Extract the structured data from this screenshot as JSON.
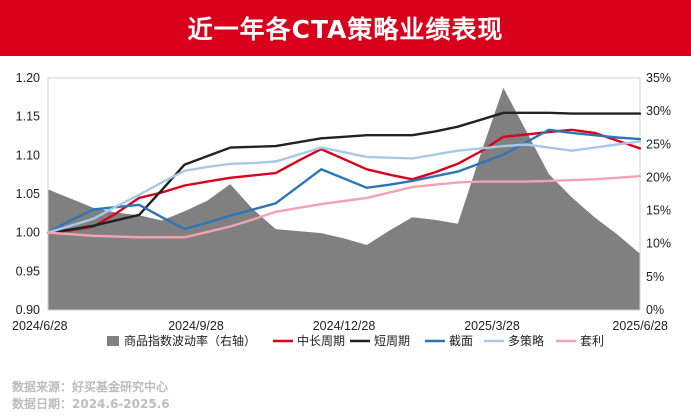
{
  "header": {
    "title": "近一年各CTA策略业绩表现"
  },
  "footer": {
    "source_line": "数据来源：好买基金研究中心",
    "date_line": "数据日期：2024.6-2025.6"
  },
  "colors": {
    "banner": "#d9001b",
    "volatility_area": "#808080",
    "中长周期": "#d9001b",
    "短周期": "#222222",
    "截面": "#2e75b6",
    "多策略": "#a9c8e8",
    "套利": "#f2a2b3"
  },
  "chart_data": {
    "type": "line",
    "x": [
      "2024/6/28",
      "2024/7/12",
      "2024/7/26",
      "2024/8/9",
      "2024/8/23",
      "2024/9/6",
      "2024/9/20",
      "2024/10/4",
      "2024/10/18",
      "2024/11/1",
      "2024/11/15",
      "2024/11/29",
      "2024/12/13",
      "2024/12/27",
      "2025/1/10",
      "2025/1/24",
      "2025/2/7",
      "2025/2/21",
      "2025/3/7",
      "2025/3/21",
      "2025/4/4",
      "2025/4/18",
      "2025/5/2",
      "2025/5/16",
      "2025/5/30",
      "2025/6/13",
      "2025/6/28"
    ],
    "x_ticks": [
      "2024/6/28",
      "2024/9/28",
      "2024/12/28",
      "2025/3/28",
      "2025/6/28"
    ],
    "y_left": {
      "ticks": [
        "0.90",
        "0.95",
        "1.00",
        "1.05",
        "1.10",
        "1.15",
        "1.20"
      ],
      "min": 0.9,
      "max": 1.2
    },
    "y_right": {
      "ticks": [
        "0%",
        "5%",
        "10%",
        "15%",
        "20%",
        "25%",
        "30%",
        "35%"
      ],
      "min": 0,
      "max": 35
    },
    "area": {
      "name": "商品指数波动率（右轴）",
      "values": [
        18.2,
        16.8,
        15.4,
        14.7,
        14.3,
        13.5,
        14.9,
        16.5,
        19.0,
        15.2,
        12.2,
        11.9,
        11.6,
        10.8,
        9.8,
        12.0,
        14.0,
        13.6,
        13.0,
        23.5,
        33.5,
        27.0,
        20.5,
        17.0,
        14.0,
        11.4,
        8.5
      ]
    },
    "series": [
      {
        "name": "中长周期",
        "values": [
          1.0,
          1.003,
          1.008,
          1.025,
          1.045,
          1.052,
          1.061,
          1.066,
          1.071,
          1.074,
          1.077,
          1.093,
          1.108,
          1.095,
          1.082,
          1.075,
          1.069,
          1.078,
          1.089,
          1.105,
          1.124,
          1.127,
          1.13,
          1.133,
          1.129,
          1.119,
          1.109
        ]
      },
      {
        "name": "短周期",
        "values": [
          1.0,
          1.004,
          1.009,
          1.016,
          1.023,
          1.055,
          1.088,
          1.099,
          1.11,
          1.111,
          1.112,
          1.117,
          1.122,
          1.124,
          1.126,
          1.126,
          1.126,
          1.131,
          1.137,
          1.146,
          1.155,
          1.155,
          1.155,
          1.154,
          1.154,
          1.154,
          1.154
        ]
      },
      {
        "name": "截面",
        "values": [
          1.0,
          1.016,
          1.03,
          1.033,
          1.036,
          1.02,
          1.005,
          1.013,
          1.022,
          1.03,
          1.038,
          1.06,
          1.082,
          1.07,
          1.058,
          1.062,
          1.067,
          1.073,
          1.079,
          1.09,
          1.101,
          1.117,
          1.133,
          1.129,
          1.126,
          1.123,
          1.121
        ]
      },
      {
        "name": "多策略",
        "values": [
          1.0,
          1.009,
          1.018,
          1.034,
          1.049,
          1.065,
          1.08,
          1.085,
          1.089,
          1.09,
          1.092,
          1.101,
          1.11,
          1.104,
          1.098,
          1.097,
          1.096,
          1.101,
          1.106,
          1.109,
          1.112,
          1.114,
          1.11,
          1.106,
          1.11,
          1.114,
          1.118
        ]
      },
      {
        "name": "套利",
        "values": [
          1.0,
          0.998,
          0.996,
          0.995,
          0.994,
          0.994,
          0.994,
          1.001,
          1.008,
          1.017,
          1.027,
          1.032,
          1.037,
          1.041,
          1.045,
          1.052,
          1.059,
          1.062,
          1.065,
          1.066,
          1.066,
          1.066,
          1.067,
          1.068,
          1.069,
          1.071,
          1.073
        ]
      }
    ],
    "legend": [
      "商品指数波动率（右轴）",
      "中长周期",
      "短周期",
      "截面",
      "多策略",
      "套利"
    ]
  }
}
